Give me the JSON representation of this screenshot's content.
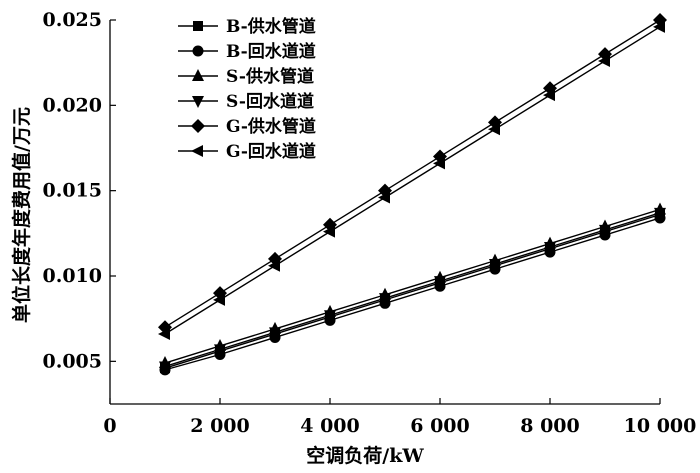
{
  "chart_data": {
    "type": "line",
    "xlabel": "空调负荷/kW",
    "ylabel": "单位长度年度费用值/万元",
    "xlim": [
      0,
      10000
    ],
    "ylim": [
      0.0025,
      0.025
    ],
    "x_ticks": [
      0,
      2000,
      4000,
      6000,
      8000,
      10000
    ],
    "x_tick_labels": [
      "0",
      "2 000",
      "4 000",
      "6 000",
      "8 000",
      "10 000"
    ],
    "y_ticks": [
      0.005,
      0.01,
      0.015,
      0.02,
      0.025
    ],
    "y_tick_labels": [
      "0.005",
      "0.010",
      "0.015",
      "0.020",
      "0.025"
    ],
    "grid": false,
    "legend_position": "top-left",
    "x": [
      1000,
      2000,
      3000,
      4000,
      5000,
      6000,
      7000,
      8000,
      9000,
      10000
    ],
    "series": [
      {
        "name": "B-供水管道",
        "marker": "square",
        "values": [
          0.0046,
          0.0056,
          0.0066,
          0.0076,
          0.0086,
          0.0096,
          0.0106,
          0.0116,
          0.0126,
          0.0136
        ]
      },
      {
        "name": "B-回水道道",
        "marker": "circle",
        "values": [
          0.0045,
          0.0054,
          0.0064,
          0.0074,
          0.0084,
          0.0094,
          0.0104,
          0.0114,
          0.0124,
          0.0134
        ]
      },
      {
        "name": "S-供水管道",
        "marker": "triangle-up",
        "values": [
          0.0049,
          0.0059,
          0.0069,
          0.0079,
          0.0089,
          0.0099,
          0.0109,
          0.0119,
          0.0129,
          0.0139
        ]
      },
      {
        "name": "S-回水道道",
        "marker": "triangle-down",
        "values": [
          0.0047,
          0.0057,
          0.0067,
          0.0077,
          0.0087,
          0.0097,
          0.0107,
          0.0117,
          0.0127,
          0.0137
        ]
      },
      {
        "name": "G-供水管道",
        "marker": "diamond",
        "values": [
          0.007,
          0.009,
          0.011,
          0.013,
          0.015,
          0.017,
          0.019,
          0.021,
          0.023,
          0.025
        ]
      },
      {
        "name": "G-回水道道",
        "marker": "triangle-left",
        "values": [
          0.0066,
          0.0086,
          0.0106,
          0.0126,
          0.0146,
          0.0166,
          0.0186,
          0.0206,
          0.0226,
          0.0246
        ]
      }
    ]
  }
}
